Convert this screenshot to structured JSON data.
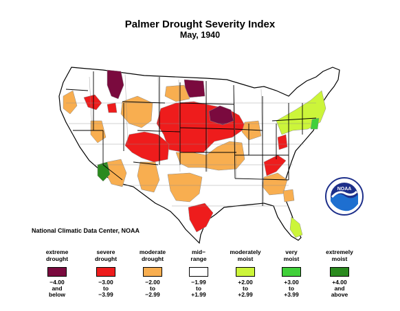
{
  "title": "Palmer Drought Severity Index",
  "subtitle": "May, 1940",
  "credit": "National Climatic Data Center, NOAA",
  "logo_text": "NOAA",
  "colors": {
    "extreme": "#7a0a3e",
    "severe": "#ee1c1c",
    "moderate": "#f8ae50",
    "mid": "#ffffff",
    "mod_moist": "#ccf53a",
    "very_moist": "#41d03a",
    "ext_moist": "#2a8a1e",
    "state_border": "#000000",
    "division_border": "#8a8a8a"
  },
  "legend": [
    {
      "label": "extreme\ndrought",
      "range": "−4.00\nand\nbelow",
      "color": "#7a0a3e"
    },
    {
      "label": "severe\ndrought",
      "range": "−3.00\nto\n−3.99",
      "color": "#ee1c1c"
    },
    {
      "label": "moderate\ndrought",
      "range": "−2.00\nto\n−2.99",
      "color": "#f8ae50"
    },
    {
      "label": "mid−\nrange",
      "range": "−1.99\nto\n+1.99",
      "color": "#ffffff"
    },
    {
      "label": "moderately\nmoist",
      "range": "+2.00\nto\n+2.99",
      "color": "#ccf53a"
    },
    {
      "label": "very\nmoist",
      "range": "+3.00\nto\n+3.99",
      "color": "#41d03a"
    },
    {
      "label": "extremely\nmoist",
      "range": "+4.00\nand\nabove",
      "color": "#2a8a1e"
    }
  ]
}
